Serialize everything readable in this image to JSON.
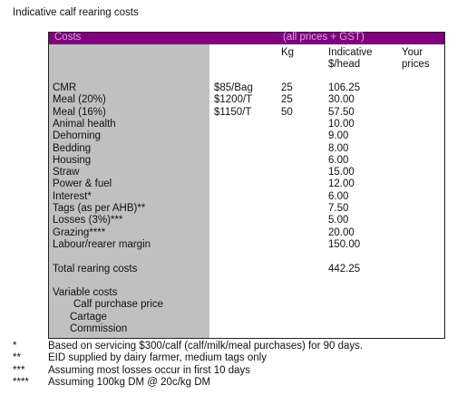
{
  "title": "Indicative calf rearing costs",
  "table": {
    "header": [
      "Costs",
      "(all prices + GST)"
    ],
    "column_headers": [
      [
        "Kg"
      ],
      [
        "Indicative",
        "$/head"
      ],
      [
        "Your",
        "prices"
      ]
    ],
    "rows": [
      {
        "item": "CMR",
        "price": "$85/Bag",
        "kg": "25",
        "cost": "106.25"
      },
      {
        "item": "Meal (20%)",
        "price": "$1200/T",
        "kg": "25",
        "cost": "30.00"
      },
      {
        "item": "Meal (16%)",
        "price": "$1150/T",
        "kg": "50",
        "cost": "57.50"
      },
      {
        "item": "Animal health",
        "cost": "10.00"
      },
      {
        "item": "Dehorning",
        "cost": "9.00"
      },
      {
        "item": "Bedding",
        "cost": "8.00"
      },
      {
        "item": "Housing",
        "cost": "6.00"
      },
      {
        "item": "Straw",
        "cost": "15.00"
      },
      {
        "item": "Power & fuel",
        "cost": "12.00"
      },
      {
        "item": "Interest*",
        "cost": "6.00"
      },
      {
        "item": "Tags (as per AHB)**",
        "cost": "7.50"
      },
      {
        "item": "Losses (3%)***",
        "cost": "5.00"
      },
      {
        "item": "Grazing****",
        "cost": "20.00"
      },
      {
        "item": "Labour/rearer margin",
        "cost": "150.00"
      }
    ],
    "total": {
      "item": "Total rearing costs",
      "cost": "442.25"
    },
    "variable_costs": {
      "label": "Variable costs",
      "items": [
        "Calf purchase price",
        "Cartage",
        "Commission"
      ]
    }
  },
  "footnotes": [
    {
      "marker": "*",
      "text": "Based on servicing $300/calf (calf/milk/meal purchases) for 90 days."
    },
    {
      "marker": "**",
      "text": "EID supplied by dairy farmer, medium tags only"
    },
    {
      "marker": "***",
      "text": "Assuming most losses occur in first 10 days"
    },
    {
      "marker": "****",
      "text": "Assuming 100kg DM @ 20c/kg DM"
    }
  ]
}
